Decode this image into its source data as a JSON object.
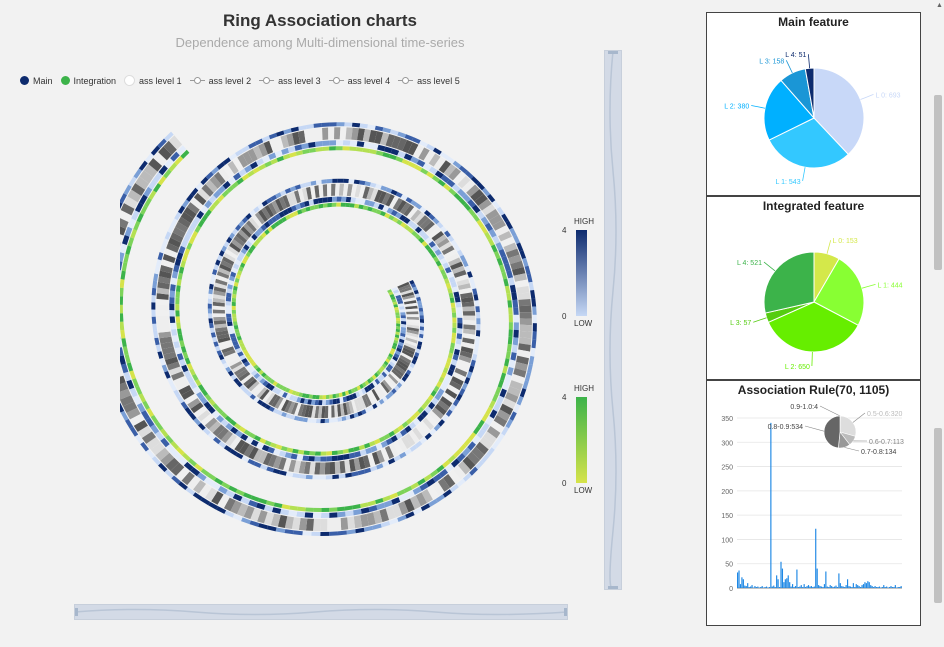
{
  "title": "Ring Association charts",
  "subtitle": "Dependence among Multi-dimensional time-series",
  "legend": [
    {
      "label": "Main",
      "color": "#0d2b6e",
      "symbol": "dot"
    },
    {
      "label": "Integration",
      "color": "#3cb34a",
      "symbol": "dot"
    },
    {
      "label": "ass level 1",
      "color": "#ffffff",
      "symbol": "dot"
    },
    {
      "label": "ass level 2",
      "symbol": "line"
    },
    {
      "label": "ass level 3",
      "symbol": "line"
    },
    {
      "label": "ass level 4",
      "symbol": "line"
    },
    {
      "label": "ass level 5",
      "symbol": "line"
    }
  ],
  "visual_maps": [
    {
      "high_label": "HIGH",
      "low_label": "LOW",
      "max": "4",
      "min": "0",
      "color_high": "#0d2b6e",
      "color_low": "#c6d8f5"
    },
    {
      "high_label": "HIGH",
      "low_label": "LOW",
      "max": "4",
      "min": "0",
      "color_high": "#3cb34a",
      "color_low": "#d6e34a"
    }
  ],
  "chart_data": [
    {
      "type": "pie",
      "title": "Main feature",
      "slices": [
        {
          "label": "L 0: 693",
          "value": 693,
          "color": "#c8d8f8"
        },
        {
          "label": "L 1: 543",
          "value": 543,
          "color": "#33c8ff"
        },
        {
          "label": "L 2: 380",
          "value": 380,
          "color": "#00b0ff"
        },
        {
          "label": "L 3: 158",
          "value": 158,
          "color": "#1a96d6"
        },
        {
          "label": "L 4: 51",
          "value": 51,
          "color": "#0d2b6e"
        }
      ]
    },
    {
      "type": "pie",
      "title": "Integrated feature",
      "slices": [
        {
          "label": "L 0: 153",
          "value": 153,
          "color": "#d4e84a"
        },
        {
          "label": "L 1: 444",
          "value": 444,
          "color": "#88ff33"
        },
        {
          "label": "L 2: 650",
          "value": 650,
          "color": "#66ee00"
        },
        {
          "label": "L 3: 57",
          "value": 57,
          "color": "#55cc11"
        },
        {
          "label": "L 4: 521",
          "value": 521,
          "color": "#3cb34a"
        }
      ]
    },
    {
      "type": "bar",
      "title": "Association Rule(70, 1105)",
      "color": "#1e88e5",
      "ylim": [
        0,
        350
      ],
      "yticks": [
        "0",
        "50",
        "100",
        "150",
        "200",
        "250",
        "300",
        "350"
      ],
      "values": [
        32,
        36,
        8,
        22,
        18,
        5,
        4,
        10,
        2,
        3,
        6,
        1,
        4,
        2,
        3,
        1,
        2,
        4,
        1,
        2,
        3,
        1,
        2,
        340,
        3,
        5,
        2,
        26,
        18,
        2,
        54,
        40,
        12,
        18,
        20,
        26,
        12,
        3,
        8,
        2,
        4,
        38,
        2,
        3,
        6,
        2,
        8,
        2,
        4,
        6,
        3,
        4,
        2,
        3,
        122,
        40,
        6,
        4,
        3,
        2,
        8,
        34,
        3,
        2,
        6,
        4,
        2,
        3,
        5,
        2,
        30,
        10,
        4,
        3,
        2,
        6,
        18,
        4,
        3,
        2,
        10,
        2,
        8,
        6,
        4,
        2,
        6,
        8,
        12,
        10,
        14,
        12,
        6,
        4,
        2,
        4,
        2,
        2,
        3,
        1,
        2,
        6,
        2,
        3,
        1,
        2,
        4,
        2,
        2,
        6,
        1,
        2,
        2,
        4
      ]
    },
    {
      "type": "pie",
      "title": "",
      "slices": [
        {
          "label": "0.9-1.0:4",
          "value": 4,
          "color": "#444444"
        },
        {
          "label": "0.5-0.6:320",
          "value": 320,
          "color": "#dddddd"
        },
        {
          "label": "0.6-0.7:113",
          "value": 113,
          "color": "#bbbbbb"
        },
        {
          "label": "0.7-0.8:134",
          "value": 134,
          "color": "#999999"
        },
        {
          "label": "0.8-0.9:534",
          "value": 534,
          "color": "#666666"
        }
      ]
    }
  ]
}
